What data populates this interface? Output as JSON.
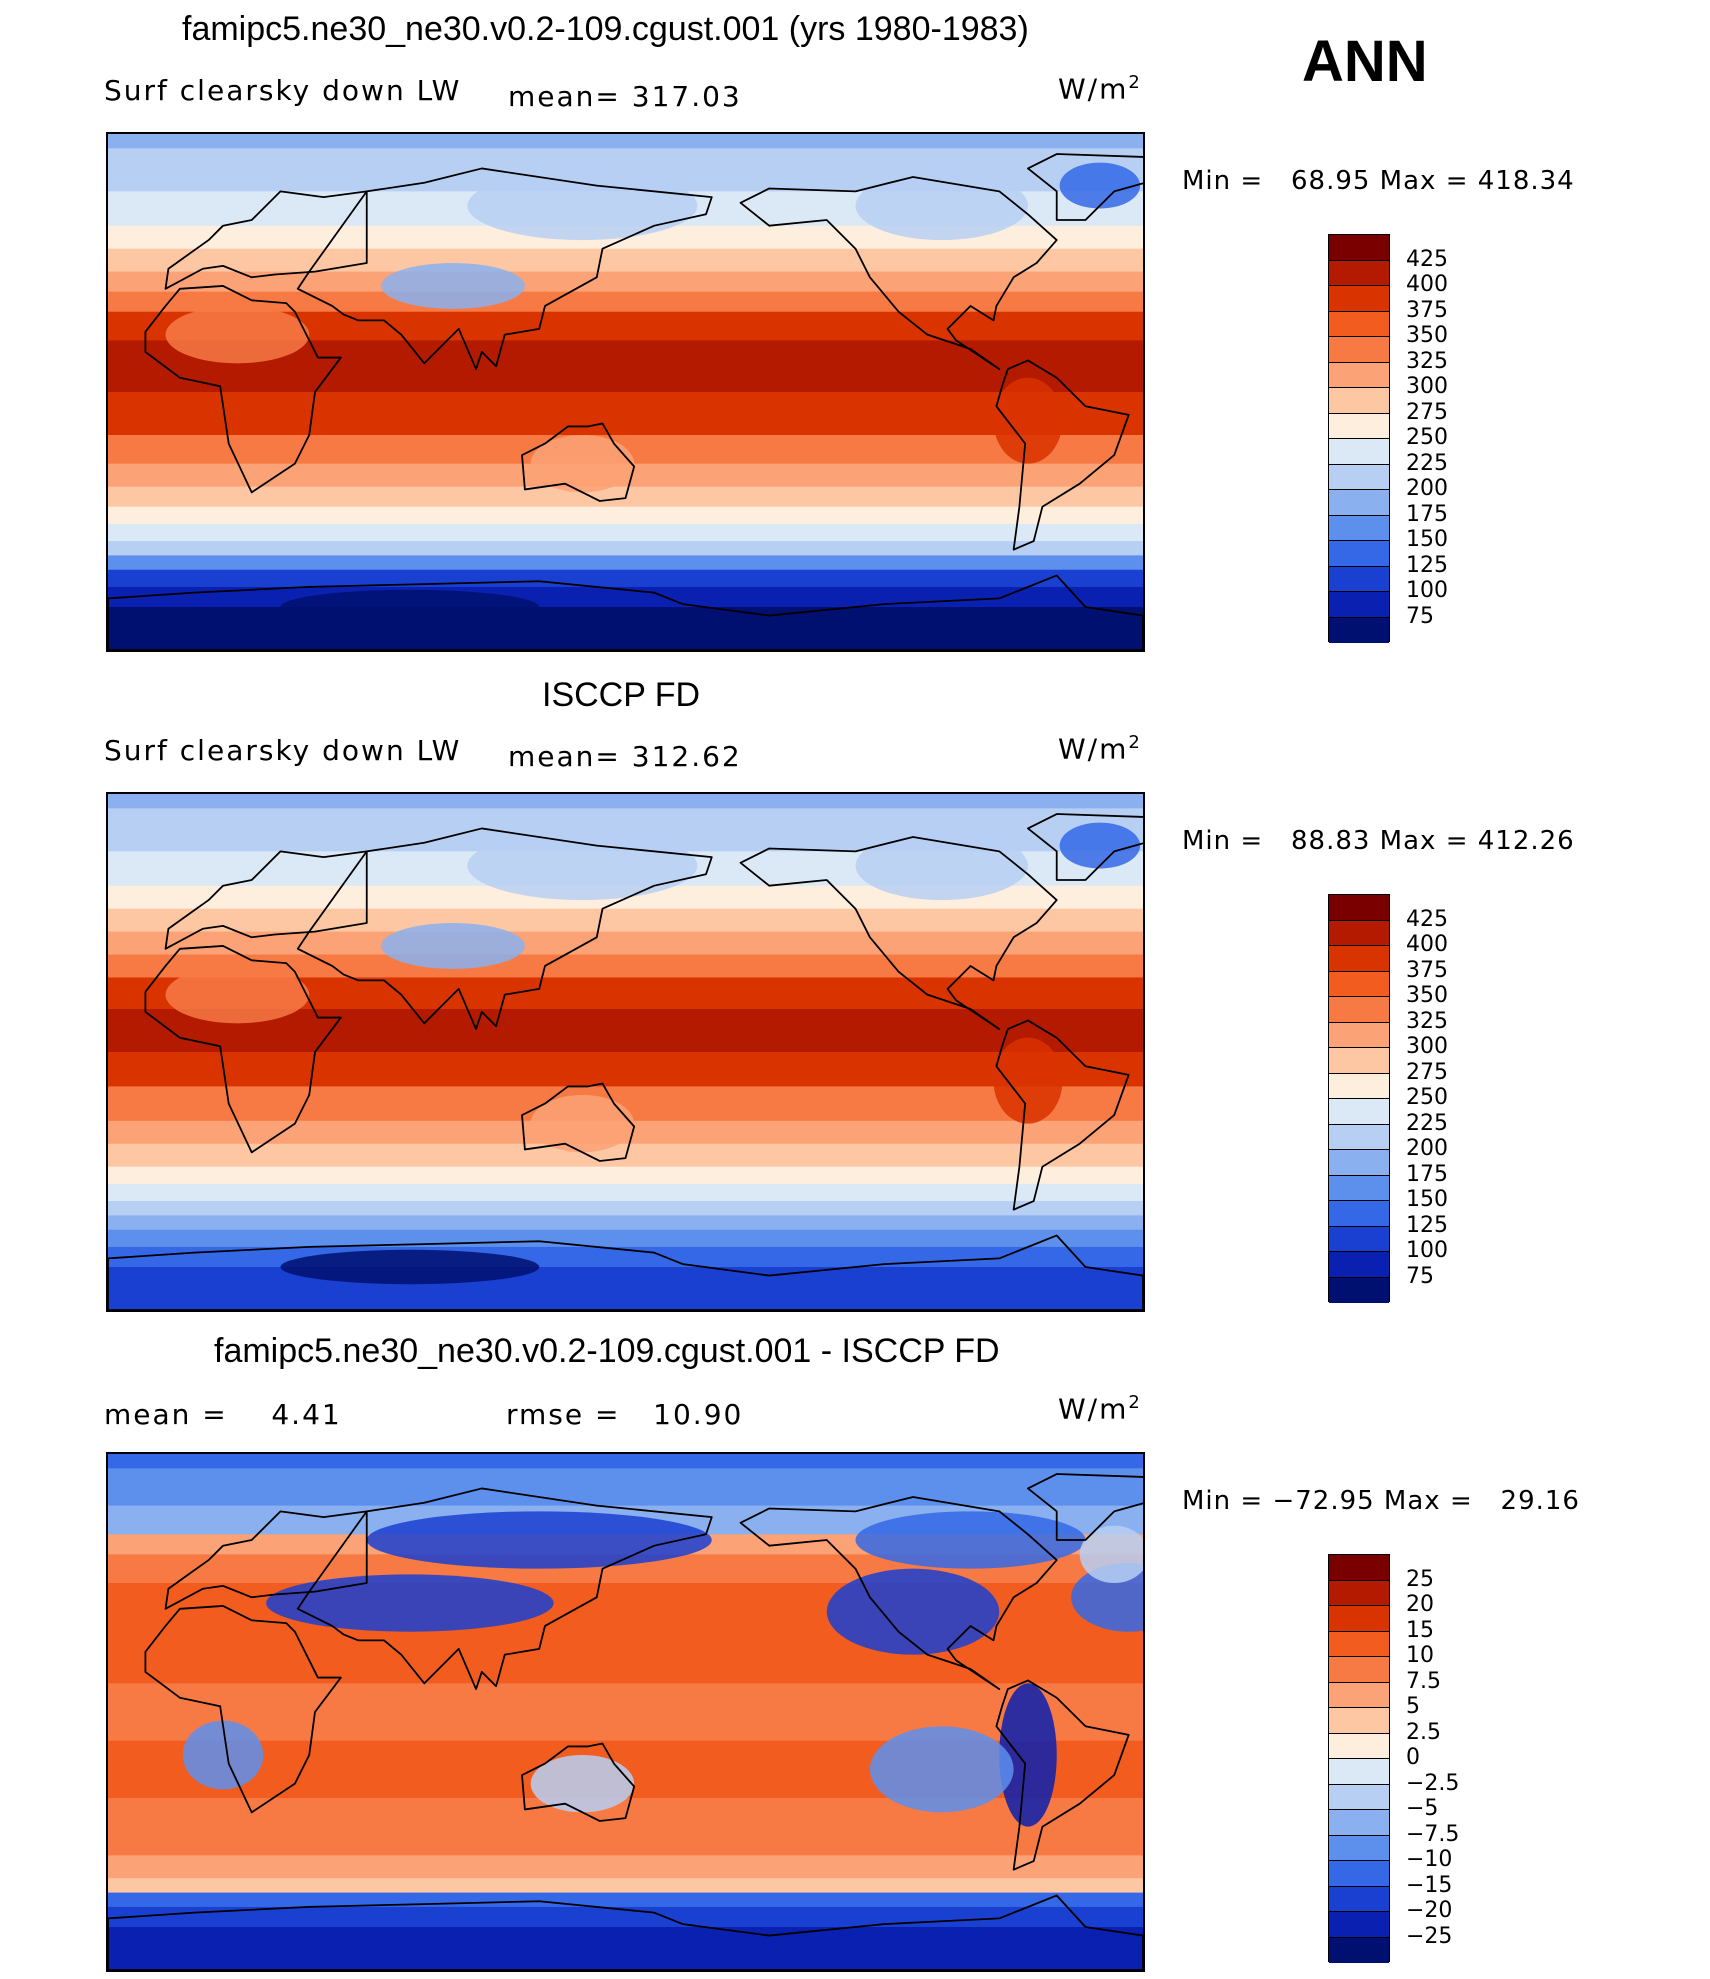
{
  "season": "ANN",
  "units": "W/m",
  "units_sup": "2",
  "panels": [
    {
      "title": "famipc5.ne30_ne30.v0.2-109.cgust.001 (yrs 1980-1983)",
      "variable": "Surf clearsky down LW",
      "stat": "mean= 317.03",
      "minmax": "Min =   68.95 Max = 418.34",
      "levels": [
        "425",
        "400",
        "375",
        "350",
        "325",
        "300",
        "275",
        "250",
        "225",
        "200",
        "175",
        "150",
        "125",
        "100",
        "75"
      ]
    },
    {
      "title": "ISCCP FD",
      "variable": "Surf clearsky down LW",
      "stat": "mean= 312.62",
      "minmax": "Min =   88.83 Max = 412.26",
      "levels": [
        "425",
        "400",
        "375",
        "350",
        "325",
        "300",
        "275",
        "250",
        "225",
        "200",
        "175",
        "150",
        "125",
        "100",
        "75"
      ]
    },
    {
      "title": "famipc5.ne30_ne30.v0.2-109.cgust.001 - ISCCP FD",
      "stat_mean": "mean =    4.41",
      "stat_rmse": "rmse =   10.90",
      "minmax": "Min = −72.95 Max =   29.16",
      "levels": [
        "25",
        "20",
        "15",
        "10",
        "7.5",
        "5",
        "2.5",
        "0",
        "−2.5",
        "−5",
        "−7.5",
        "−10",
        "−15",
        "−20",
        "−25"
      ]
    }
  ],
  "colors": [
    "#7a0000",
    "#b31a00",
    "#d93300",
    "#f25c1f",
    "#f77a45",
    "#fba276",
    "#fdc7a4",
    "#feeede",
    "#dbe9f7",
    "#b7cff3",
    "#8ab0ef",
    "#5d8fed",
    "#3468e6",
    "#1a40d1",
    "#0a20b0",
    "#001070"
  ],
  "map_fields": {
    "model": [
      {
        "lat": 85,
        "c": "#8ab0ef"
      },
      {
        "lat": 70,
        "c": "#b7cff3"
      },
      {
        "lat": 58,
        "c": "#dbe9f7"
      },
      {
        "lat": 50,
        "c": "#feeede"
      },
      {
        "lat": 42,
        "c": "#fdc7a4"
      },
      {
        "lat": 35,
        "c": "#fba276"
      },
      {
        "lat": 28,
        "c": "#f77a45"
      },
      {
        "lat": 18,
        "c": "#d93300"
      },
      {
        "lat": 0,
        "c": "#b31a00"
      },
      {
        "lat": -15,
        "c": "#d93300"
      },
      {
        "lat": -25,
        "c": "#f77a45"
      },
      {
        "lat": -33,
        "c": "#fba276"
      },
      {
        "lat": -40,
        "c": "#fdc7a4"
      },
      {
        "lat": -46,
        "c": "#feeede"
      },
      {
        "lat": -52,
        "c": "#dbe9f7"
      },
      {
        "lat": -57,
        "c": "#b7cff3"
      },
      {
        "lat": -62,
        "c": "#5d8fed"
      },
      {
        "lat": -68,
        "c": "#1a40d1"
      },
      {
        "lat": -75,
        "c": "#0a20b0"
      },
      {
        "lat": -90,
        "c": "#001070"
      }
    ],
    "obs": [
      {
        "lat": 85,
        "c": "#8ab0ef"
      },
      {
        "lat": 70,
        "c": "#b7cff3"
      },
      {
        "lat": 58,
        "c": "#dbe9f7"
      },
      {
        "lat": 50,
        "c": "#feeede"
      },
      {
        "lat": 42,
        "c": "#fdc7a4"
      },
      {
        "lat": 34,
        "c": "#fba276"
      },
      {
        "lat": 26,
        "c": "#f77a45"
      },
      {
        "lat": 15,
        "c": "#d93300"
      },
      {
        "lat": 0,
        "c": "#b31a00"
      },
      {
        "lat": -12,
        "c": "#d93300"
      },
      {
        "lat": -24,
        "c": "#f77a45"
      },
      {
        "lat": -32,
        "c": "#fba276"
      },
      {
        "lat": -40,
        "c": "#fdc7a4"
      },
      {
        "lat": -46,
        "c": "#feeede"
      },
      {
        "lat": -52,
        "c": "#dbe9f7"
      },
      {
        "lat": -57,
        "c": "#b7cff3"
      },
      {
        "lat": -62,
        "c": "#8ab0ef"
      },
      {
        "lat": -68,
        "c": "#5d8fed"
      },
      {
        "lat": -75,
        "c": "#3468e6"
      },
      {
        "lat": -90,
        "c": "#1a40d1"
      }
    ],
    "diff": [
      {
        "lat": 85,
        "c": "#3468e6"
      },
      {
        "lat": 72,
        "c": "#5d8fed"
      },
      {
        "lat": 62,
        "c": "#8ab0ef"
      },
      {
        "lat": 55,
        "c": "#fba276"
      },
      {
        "lat": 45,
        "c": "#f77a45"
      },
      {
        "lat": 30,
        "c": "#f25c1f"
      },
      {
        "lat": 10,
        "c": "#f25c1f"
      },
      {
        "lat": -10,
        "c": "#f77a45"
      },
      {
        "lat": -30,
        "c": "#f25c1f"
      },
      {
        "lat": -50,
        "c": "#f77a45"
      },
      {
        "lat": -58,
        "c": "#fba276"
      },
      {
        "lat": -63,
        "c": "#fdc7a4"
      },
      {
        "lat": -68,
        "c": "#3468e6"
      },
      {
        "lat": -75,
        "c": "#1a40d1"
      },
      {
        "lat": -90,
        "c": "#0a20b0"
      }
    ]
  }
}
